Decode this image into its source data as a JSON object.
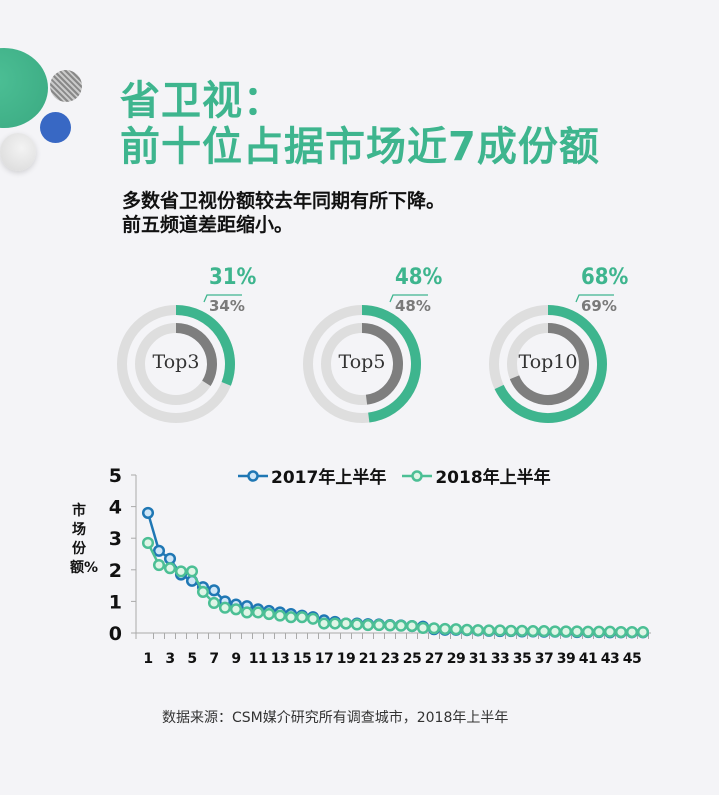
{
  "header": {
    "title_line1": "省卫视：",
    "title_line2": "前十位占据市场近7成份额",
    "subtitle_line1": "多数省卫视份额较去年同期有所下降。",
    "subtitle_line2": "前五频道差距缩小。"
  },
  "colors": {
    "accent_green": "#3eb58e",
    "series_2017": "#1f77b4",
    "series_2018": "#4cbf95",
    "ring_bg": "#dedede",
    "ring_inner": "#7e7e7e"
  },
  "donuts": [
    {
      "label": "Top3",
      "current": "31%",
      "previous": "34%",
      "current_value": 31,
      "previous_value": 34
    },
    {
      "label": "Top5",
      "current": "48%",
      "previous": "48%",
      "current_value": 48,
      "previous_value": 48
    },
    {
      "label": "Top10",
      "current": "68%",
      "previous": "69%",
      "current_value": 68,
      "previous_value": 69
    }
  ],
  "footer": {
    "source": "数据来源：CSM媒介研究所有调查城市，2018年上半年"
  },
  "chart_data": {
    "type": "line",
    "title": "",
    "xlabel": "",
    "ylabel": "市场份额%",
    "ylim": [
      0,
      5
    ],
    "yticks": [
      0,
      1,
      2,
      3,
      4,
      5
    ],
    "xticks": [
      1,
      3,
      5,
      7,
      9,
      11,
      13,
      15,
      17,
      19,
      21,
      23,
      25,
      27,
      29,
      31,
      33,
      35,
      37,
      39,
      41,
      43,
      45
    ],
    "legend_position": "top",
    "grid": false,
    "x": [
      1,
      2,
      3,
      4,
      5,
      6,
      7,
      8,
      9,
      10,
      11,
      12,
      13,
      14,
      15,
      16,
      17,
      18,
      19,
      20,
      21,
      22,
      23,
      24,
      25,
      26,
      27,
      28,
      29,
      30,
      31,
      32,
      33,
      34,
      35,
      36,
      37,
      38,
      39,
      40,
      41,
      42,
      43,
      44,
      45,
      46
    ],
    "series": [
      {
        "name": "2017年上半年",
        "values": [
          3.8,
          2.6,
          2.35,
          1.85,
          1.65,
          1.45,
          1.35,
          1.0,
          0.9,
          0.85,
          0.75,
          0.7,
          0.65,
          0.6,
          0.55,
          0.5,
          0.4,
          0.35,
          0.3,
          0.3,
          0.28,
          0.27,
          0.25,
          0.24,
          0.22,
          0.2,
          0.12,
          0.1,
          0.1,
          0.09,
          0.08,
          0.07,
          0.06,
          0.06,
          0.05,
          0.05,
          0.04,
          0.04,
          0.04,
          0.03,
          0.03,
          0.03,
          0.02,
          0.02,
          0.02,
          0.02
        ]
      },
      {
        "name": "2018年上半年",
        "values": [
          2.85,
          2.15,
          2.05,
          1.95,
          1.95,
          1.3,
          0.95,
          0.8,
          0.75,
          0.65,
          0.65,
          0.6,
          0.55,
          0.5,
          0.5,
          0.45,
          0.3,
          0.3,
          0.3,
          0.27,
          0.25,
          0.25,
          0.24,
          0.23,
          0.22,
          0.16,
          0.15,
          0.13,
          0.12,
          0.1,
          0.09,
          0.08,
          0.08,
          0.07,
          0.07,
          0.06,
          0.06,
          0.05,
          0.05,
          0.05,
          0.04,
          0.04,
          0.04,
          0.03,
          0.03,
          0.03
        ]
      }
    ]
  }
}
